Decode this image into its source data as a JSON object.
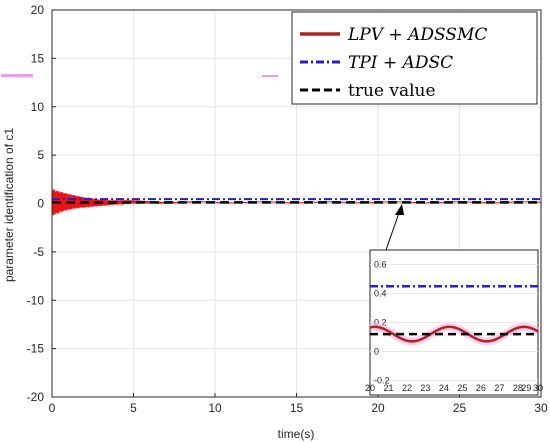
{
  "chart_data": {
    "type": "line",
    "xlabel": "time(s)",
    "ylabel": "parameter identification of c1",
    "xlim": [
      0,
      30
    ],
    "ylim": [
      -20,
      20
    ],
    "xticks": [
      "0",
      "5",
      "10",
      "15",
      "20",
      "25",
      "30"
    ],
    "yticks": [
      "-20",
      "-15",
      "-10",
      "-5",
      "0",
      "5",
      "10",
      "15",
      "20"
    ],
    "grid": true,
    "legend_position": "top-right",
    "series": [
      {
        "name": "LPV + ADSSMC",
        "color": "#b22222",
        "style": "solid",
        "description_values": {
          "initial_oscillation_amplitude": 1.4,
          "decay_time": 6,
          "steady_mean": 0.12,
          "steady_amplitude": 0.05,
          "steady_period": 4
        }
      },
      {
        "name": "TPI + ADSC",
        "color": "#1f1fcf",
        "style": "dashdot",
        "steady_value": 0.45
      },
      {
        "name": "true value",
        "color": "#000000",
        "style": "dashed",
        "steady_value": 0.12
      }
    ],
    "inset": {
      "xlim": [
        20,
        30
      ],
      "ylim": [
        -0.3,
        0.7
      ],
      "xticks": [
        "20",
        "21",
        "22",
        "23",
        "24",
        "25",
        "26",
        "27",
        "28",
        "29",
        "30"
      ],
      "xtick_positions": [
        20,
        21.1,
        22.2,
        23.3,
        24.4,
        25.5,
        26.6,
        27.7,
        28.8,
        29.3,
        30
      ],
      "yticks": [
        "-0.2",
        "0",
        "0.2",
        "0.4",
        "0.6"
      ],
      "ytick_values": [
        -0.2,
        0,
        0.2,
        0.4,
        0.6
      ]
    }
  },
  "colors": {
    "lpv": "#b22222",
    "lpv_glow": "#f6b0e8",
    "tpi": "#1f1fcf",
    "true": "#000000",
    "transient_fill": "#ee1111",
    "grid": "#e6e6e6",
    "axis": "#262626"
  }
}
